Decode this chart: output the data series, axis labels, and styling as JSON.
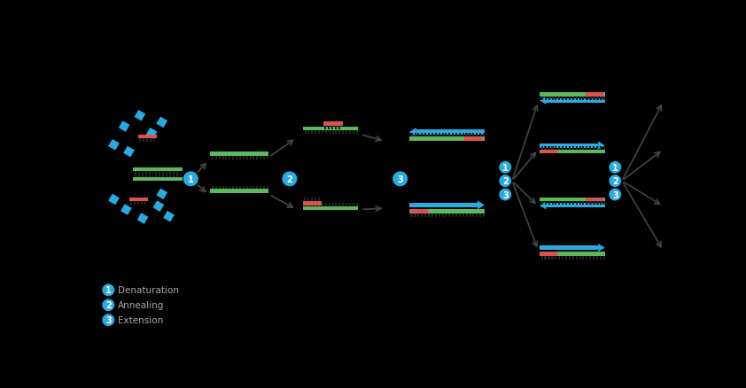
{
  "bg_color": "#000000",
  "green_color": "#5cb85c",
  "red_color": "#d9534f",
  "blue_color": "#29abe2",
  "arrow_color": "#444444",
  "text_color": "#aaaaaa",
  "legend": [
    {
      "num": "1",
      "text": "Denaturation"
    },
    {
      "num": "2",
      "text": "Annealing"
    },
    {
      "num": "3",
      "text": "Extension"
    }
  ]
}
